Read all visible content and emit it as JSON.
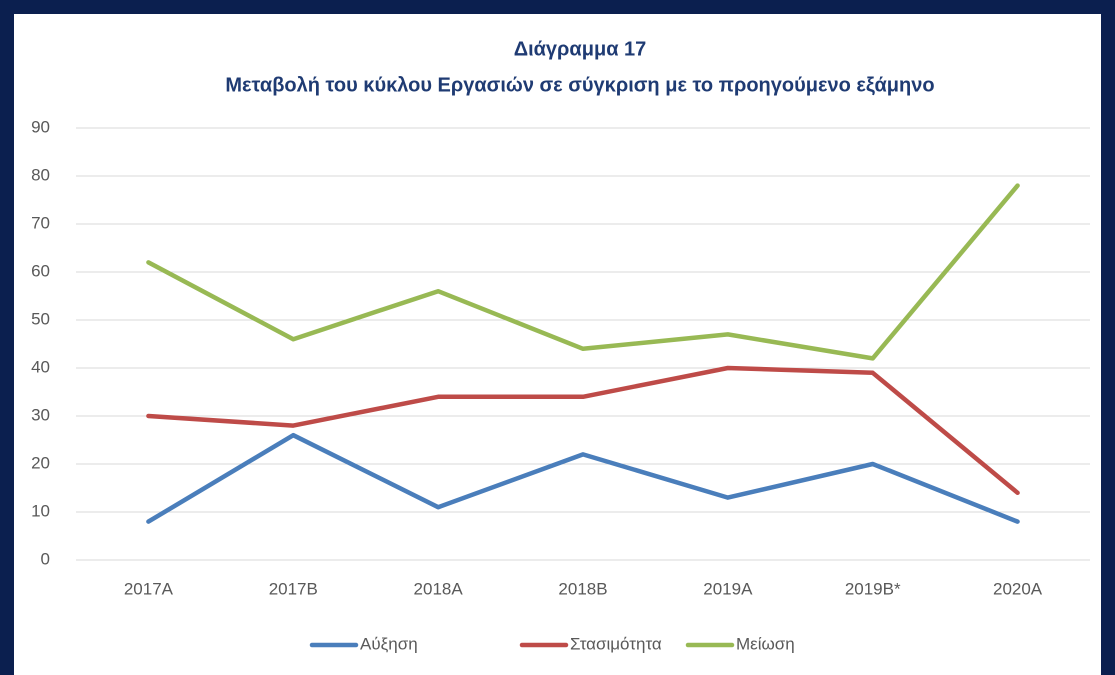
{
  "chart_data": {
    "type": "line",
    "title": "Διάγραμμα 17",
    "subtitle": "Μεταβολή του κύκλου Εργασιών σε σύγκριση με το προηγούμενο εξάμηνο",
    "categories": [
      "2017A",
      "2017B",
      "2018A",
      "2018B",
      "2019A",
      "2019B*",
      "2020A"
    ],
    "series": [
      {
        "name": "Αύξηση",
        "color": "#4a7ebb",
        "values": [
          8,
          26,
          11,
          22,
          13,
          20,
          8
        ]
      },
      {
        "name": "Στασιμότητα",
        "color": "#be4b48",
        "values": [
          30,
          28,
          34,
          34,
          40,
          39,
          14
        ]
      },
      {
        "name": "Μείωση",
        "color": "#98b954",
        "values": [
          62,
          46,
          56,
          44,
          47,
          42,
          78
        ]
      }
    ],
    "ylim": [
      0,
      90
    ],
    "yticks": [
      0,
      10,
      20,
      30,
      40,
      50,
      60,
      70,
      80,
      90
    ],
    "grid": true,
    "legend": "bottom"
  }
}
